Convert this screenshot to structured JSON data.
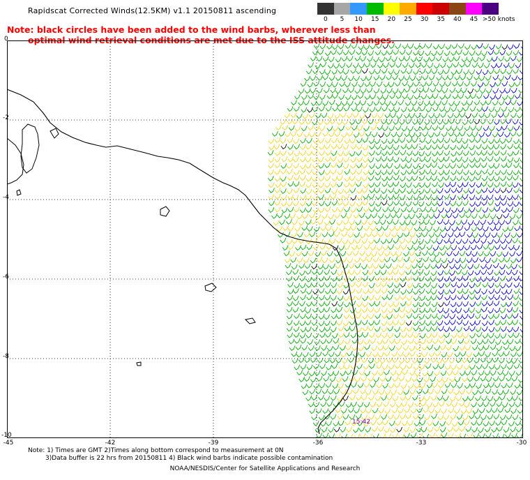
{
  "header": {
    "title": "Rapidscat Corrected Winds(12.5KM) v1.1 20150811 ascending",
    "note_line1": "Note: black circles have been added to the wind barbs, wherever less than",
    "note_line2": "optimal wind retrieval conditions are met due to the ISS attitude changes."
  },
  "legend": {
    "unit": "knots",
    "bins": [
      {
        "label": "0",
        "color": "#333333"
      },
      {
        "label": "5",
        "color": "#a6a6a6"
      },
      {
        "label": "10",
        "color": "#3399ff"
      },
      {
        "label": "15",
        "color": "#00bb00"
      },
      {
        "label": "20",
        "color": "#ffff00"
      },
      {
        "label": "25",
        "color": "#ffaa00"
      },
      {
        "label": "30",
        "color": "#ff0000"
      },
      {
        "label": "35",
        "color": "#cc0000"
      },
      {
        "label": "40",
        "color": "#8b4513"
      },
      {
        "label": "45",
        "color": "#ff00ff"
      },
      {
        "label": ">50 knots",
        "color": "#4b0082"
      }
    ]
  },
  "map": {
    "lat_labels": [
      "0",
      "-2",
      "-4",
      "-6",
      "-8",
      "-10"
    ],
    "lon_labels": [
      "-45",
      "-42",
      "-39",
      "-36",
      "-33",
      "-30"
    ],
    "lat_range": [
      -10,
      0
    ],
    "lon_range": [
      -45,
      -30
    ],
    "timestamp_label": "15:42",
    "barb_colors": {
      "green": "#00aa00",
      "yellow": "#f2d21a",
      "blue": "#0000cc",
      "black": "#000000"
    }
  },
  "footer": {
    "line1": "Note: 1) Times are GMT 2)Times along bottom correspond to measurement at 0N",
    "line2": "3)Data buffer is 22 hrs from 20150811 4) Black wind barbs indicate possible contamination",
    "credit": "NOAA/NESDIS/Center for Satellite Applications and Research"
  }
}
